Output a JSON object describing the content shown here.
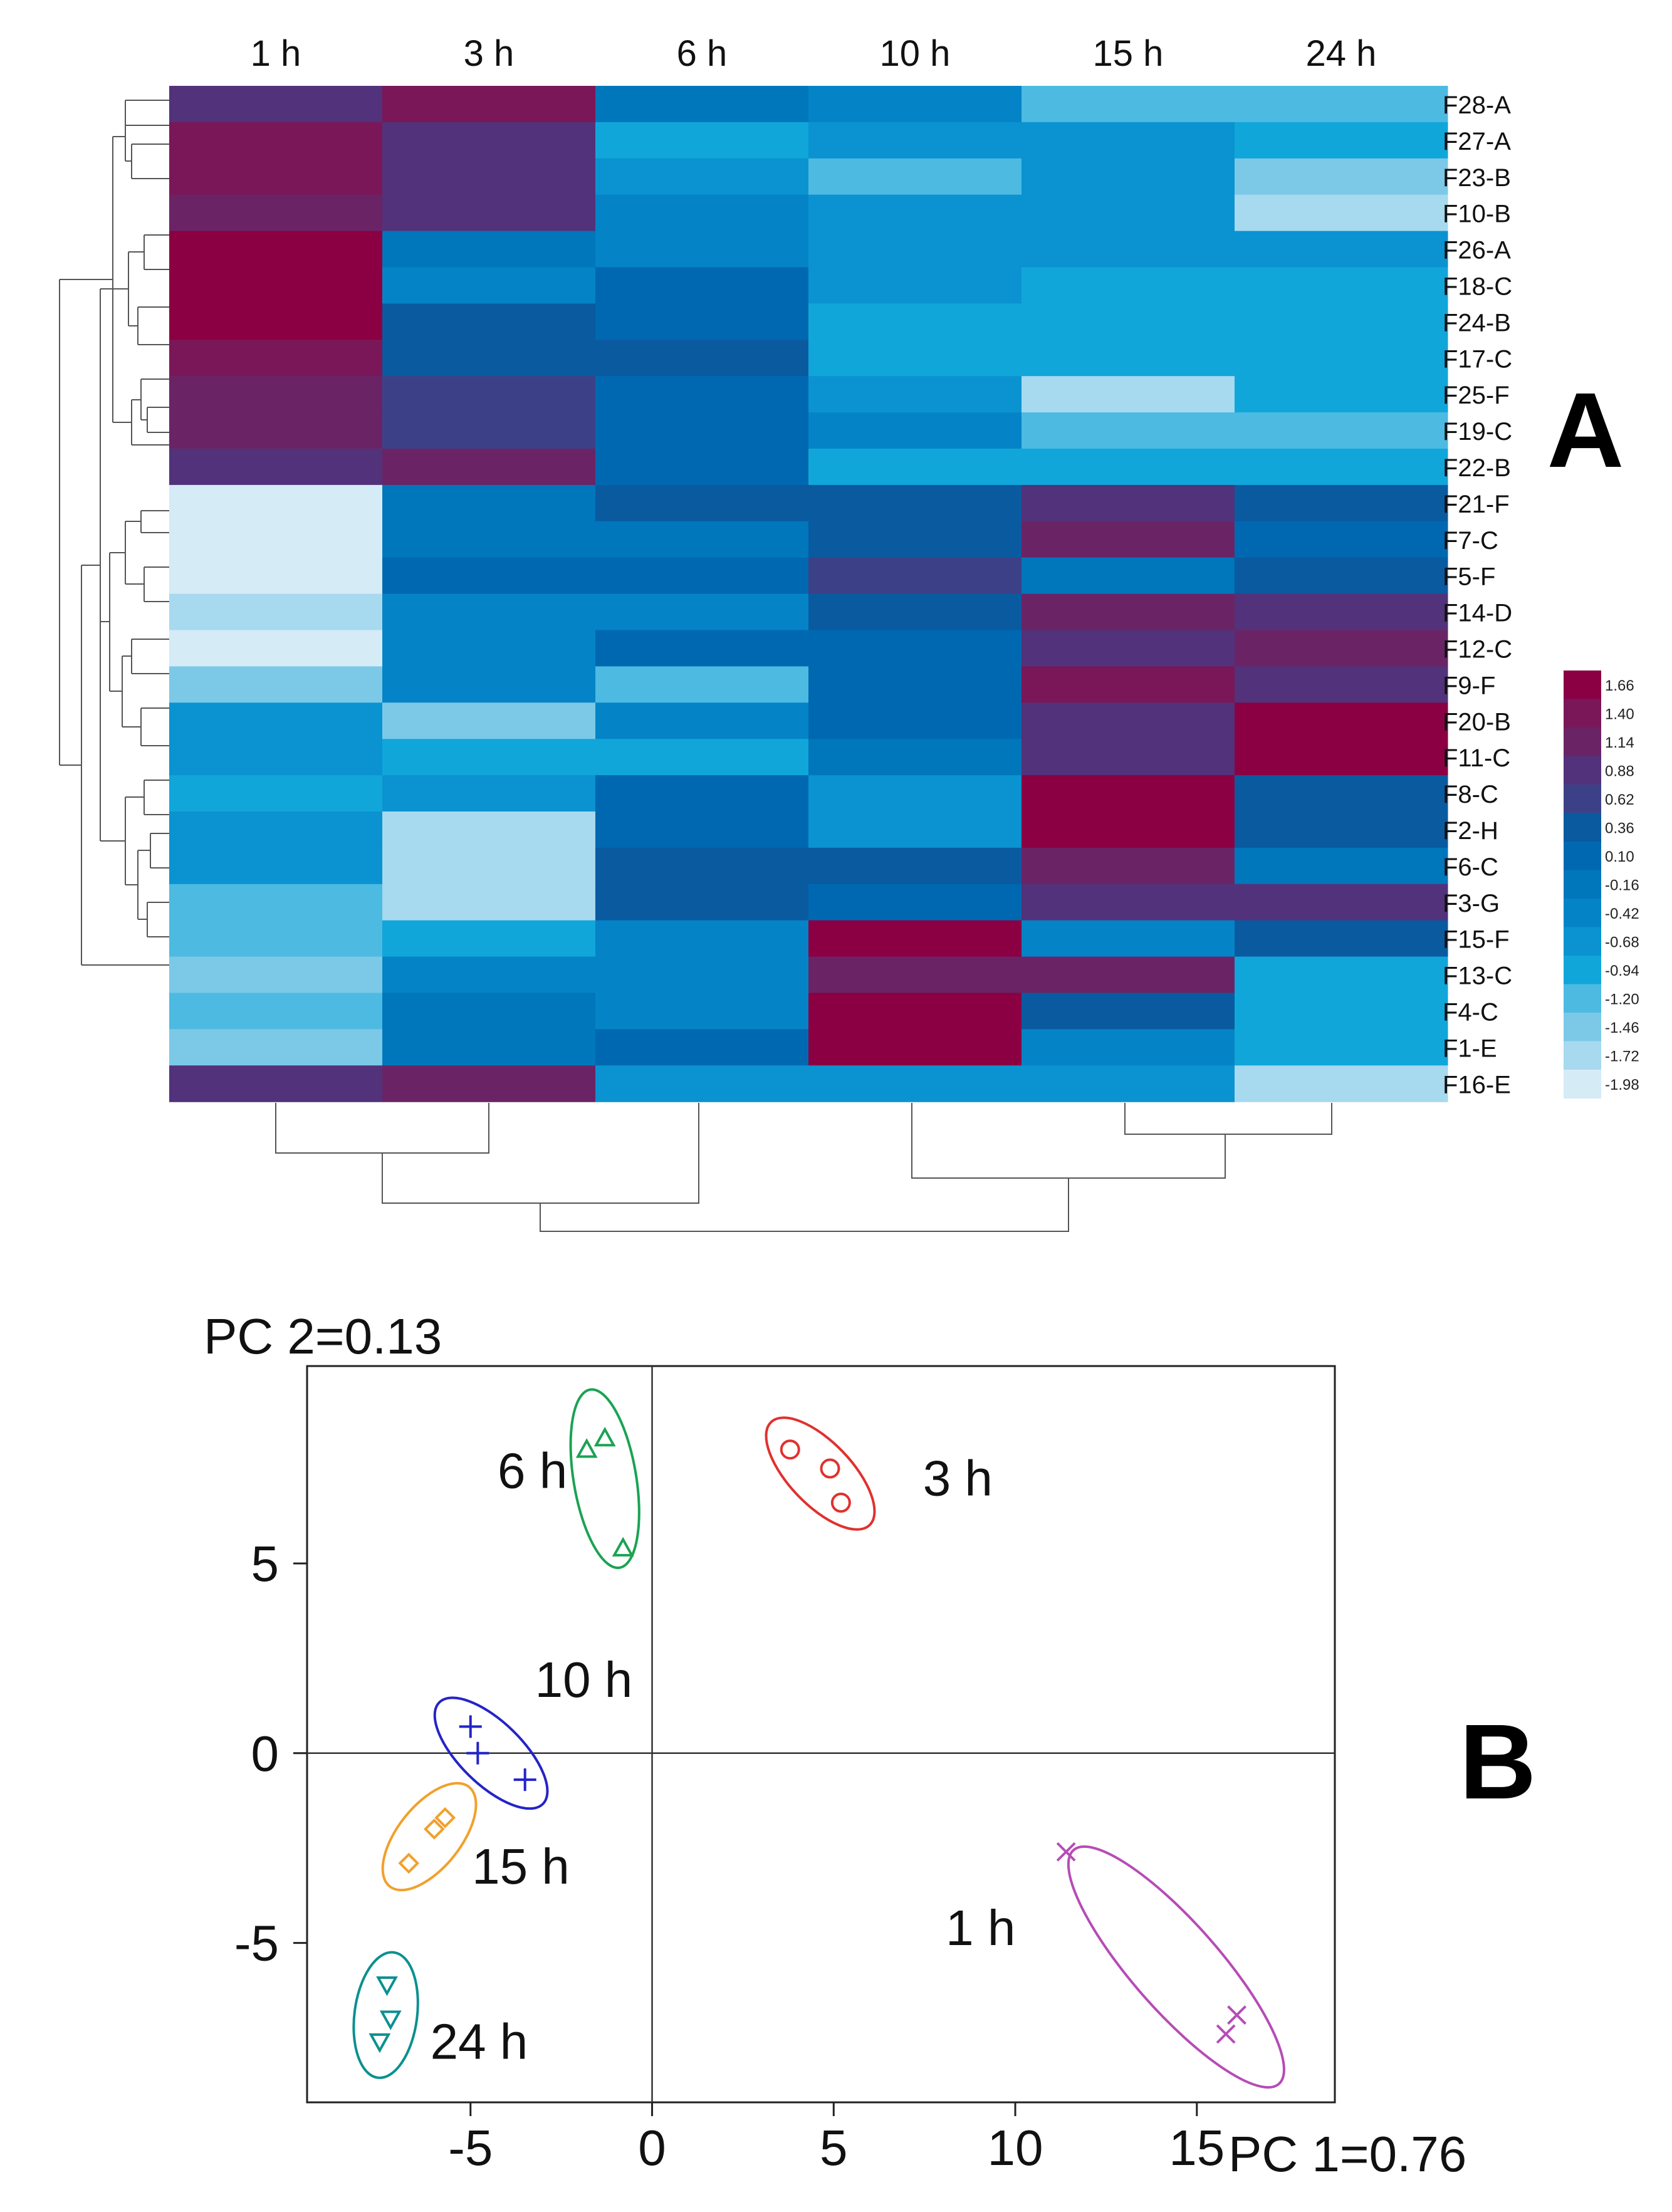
{
  "panel_labels": {
    "heatmap": "A",
    "pca": "B"
  },
  "chart_data": [
    {
      "type": "heatmap",
      "columns": [
        "1 h",
        "3 h",
        "6 h",
        "10 h",
        "15 h",
        "24 h"
      ],
      "rows": [
        "F28-A",
        "F27-A",
        "F23-B",
        "F10-B",
        "F26-A",
        "F18-C",
        "F24-B",
        "F17-C",
        "F25-F",
        "F19-C",
        "F22-B",
        "F21-F",
        "F7-C",
        "F5-F",
        "F14-D",
        "F12-C",
        "F9-F",
        "F20-B",
        "F11-C",
        "F8-C",
        "F2-H",
        "F6-C",
        "F3-G",
        "F15-F",
        "F13-C",
        "F4-C",
        "F1-E",
        "F16-E"
      ],
      "values": [
        [
          0.9,
          1.3,
          -0.2,
          -0.3,
          -1.2,
          -1.2
        ],
        [
          1.4,
          0.9,
          -0.8,
          -0.7,
          -0.6,
          -0.8
        ],
        [
          1.4,
          0.9,
          -0.5,
          -1.0,
          -0.6,
          -1.3
        ],
        [
          1.1,
          0.9,
          -0.3,
          -0.5,
          -0.6,
          -1.6
        ],
        [
          1.7,
          -0.2,
          -0.3,
          -0.7,
          -0.7,
          -0.7
        ],
        [
          1.7,
          -0.4,
          0.1,
          -0.6,
          -0.8,
          -0.8
        ],
        [
          1.7,
          0.4,
          0.1,
          -0.9,
          -0.8,
          -0.8
        ],
        [
          1.4,
          0.4,
          0.3,
          -0.9,
          -0.8,
          -0.8
        ],
        [
          1.2,
          0.7,
          0.1,
          -0.6,
          -1.5,
          -0.8
        ],
        [
          1.2,
          0.6,
          0.1,
          -0.3,
          -1.2,
          -1.2
        ],
        [
          0.9,
          1.2,
          0.1,
          -0.8,
          -0.8,
          -0.8
        ],
        [
          -2.0,
          -0.2,
          0.4,
          0.4,
          0.9,
          0.5
        ],
        [
          -2.0,
          -0.2,
          -0.1,
          0.4,
          1.1,
          0.2
        ],
        [
          -2.0,
          0.1,
          0.1,
          0.7,
          -0.2,
          0.4
        ],
        [
          -1.6,
          -0.4,
          -0.4,
          0.4,
          1.1,
          0.8
        ],
        [
          -1.9,
          -0.4,
          0.1,
          0.2,
          0.8,
          1.2
        ],
        [
          -1.3,
          -0.4,
          -1.0,
          0.2,
          1.4,
          0.9
        ],
        [
          -0.6,
          -1.3,
          -0.3,
          0.2,
          0.8,
          1.6
        ],
        [
          -0.6,
          -0.8,
          -0.8,
          -0.2,
          0.9,
          1.6
        ],
        [
          -0.9,
          -0.6,
          0.1,
          -0.6,
          1.7,
          0.4
        ],
        [
          -0.7,
          -1.5,
          0.1,
          -0.5,
          1.6,
          0.3
        ],
        [
          -0.7,
          -1.5,
          0.5,
          0.4,
          1.2,
          -0.2
        ],
        [
          -1.1,
          -1.5,
          0.4,
          0.2,
          1.0,
          1.0
        ],
        [
          -1.1,
          -0.9,
          -0.4,
          1.7,
          -0.4,
          0.4
        ],
        [
          -1.4,
          -0.4,
          -0.3,
          1.2,
          1.1,
          -0.8
        ],
        [
          -1.1,
          -0.2,
          -0.3,
          1.7,
          0.4,
          -0.8
        ],
        [
          -1.4,
          -0.2,
          0.2,
          1.7,
          -0.3,
          -0.8
        ],
        [
          0.9,
          1.2,
          -0.6,
          -0.6,
          -0.6,
          -1.7
        ]
      ],
      "colorbar": {
        "ticks": [
          "1.66",
          "1.40",
          "1.14",
          "0.88",
          "0.62",
          "0.36",
          "0.10",
          "-0.16",
          "-0.42",
          "-0.68",
          "-0.94",
          "-1.20",
          "-1.46",
          "-1.72",
          "-1.98"
        ],
        "colors": [
          "#8b0043",
          "#7a1758",
          "#6a2466",
          "#52327a",
          "#3c4187",
          "#0a5aa0",
          "#0068b0",
          "#0076bb",
          "#0484c6",
          "#0a93d0",
          "#11a6da",
          "#4dbae2",
          "#7cc9e7",
          "#a7d9ef",
          "#d5ebf6"
        ]
      },
      "row_dendrogram": true,
      "column_dendrogram": true
    },
    {
      "type": "scatter",
      "xlabel": "PC 1=0.76",
      "ylabel": "PC 2=0.13",
      "xlim": [
        -9.5,
        18.8
      ],
      "ylim": [
        -9.2,
        10.2
      ],
      "x_ticks": [
        -5,
        0,
        5,
        10,
        15
      ],
      "y_ticks": [
        5,
        0,
        -5
      ],
      "series": [
        {
          "name": "1 h",
          "marker": "x",
          "color": "#b64cb6",
          "x": [
            11.4,
            15.8,
            16.1
          ],
          "y": [
            -2.6,
            -7.4,
            -6.9
          ]
        },
        {
          "name": "3 h",
          "marker": "circle",
          "color": "#e0312e",
          "x": [
            3.8,
            4.9,
            5.2
          ],
          "y": [
            8.0,
            7.5,
            6.6
          ]
        },
        {
          "name": "6 h",
          "marker": "triangle",
          "color": "#1aa353",
          "x": [
            -1.8,
            -1.3,
            -0.8
          ],
          "y": [
            8.0,
            8.3,
            5.4
          ]
        },
        {
          "name": "10 h",
          "marker": "plus",
          "color": "#2424c8",
          "x": [
            -5.0,
            -4.8,
            -3.5
          ],
          "y": [
            0.7,
            0.0,
            -0.7
          ]
        },
        {
          "name": "15 h",
          "marker": "diamond",
          "color": "#f2a02b",
          "x": [
            -6.7,
            -6.0,
            -5.7
          ],
          "y": [
            -2.9,
            -2.0,
            -1.7
          ]
        },
        {
          "name": "24 h",
          "marker": "triangle-down",
          "color": "#0b9090",
          "x": [
            -7.3,
            -7.2,
            -7.5
          ],
          "y": [
            -6.1,
            -7.0,
            -7.6
          ]
        }
      ],
      "grid": false,
      "zero_lines": true
    }
  ]
}
